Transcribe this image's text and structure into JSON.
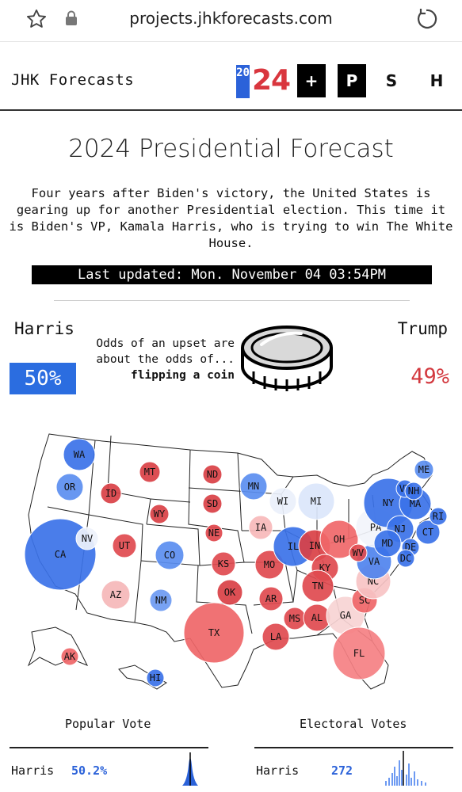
{
  "browser": {
    "url": "projects.jhkforecasts.com",
    "icons": [
      "star-icon",
      "lock-icon",
      "reload-icon"
    ]
  },
  "header": {
    "brand": "JHK Forecasts",
    "logo_top": "20",
    "logo_year": "24",
    "buttons": [
      "+",
      "P",
      "S",
      "H"
    ]
  },
  "page": {
    "title": "2024 Presidential Forecast",
    "intro": "Four years after Biden's victory, the United States is gearing up for another Presidential election. This time it is Biden's VP, Kamala Harris, who is trying to win The White House.",
    "updated": "Last updated: Mon. November 04 03:54PM"
  },
  "odds": {
    "left_name": "Harris",
    "left_pct": "50%",
    "right_name": "Trump",
    "right_pct": "49%",
    "upset_line1": "Odds of an upset are",
    "upset_line2": "about the odds of...",
    "upset_line3": "flipping a coin"
  },
  "colors": {
    "dem": "#2b6de0",
    "rep": "#e03a40",
    "accent_red": "#d9363e"
  },
  "states": [
    {
      "code": "WA",
      "r": 20,
      "c": "#3b72e8"
    },
    {
      "code": "OR",
      "r": 17,
      "c": "#5b8ef0"
    },
    {
      "code": "CA",
      "r": 45,
      "c": "#3b72e8"
    },
    {
      "code": "NV",
      "r": 14,
      "c": "#eef2fb"
    },
    {
      "code": "ID",
      "r": 13,
      "c": "#d94045"
    },
    {
      "code": "MT",
      "r": 13,
      "c": "#d94045"
    },
    {
      "code": "WY",
      "r": 12,
      "c": "#d94045"
    },
    {
      "code": "UT",
      "r": 15,
      "c": "#e04a4f"
    },
    {
      "code": "AZ",
      "r": 18,
      "c": "#f5b7b8"
    },
    {
      "code": "CO",
      "r": 18,
      "c": "#5b8ef0"
    },
    {
      "code": "NM",
      "r": 14,
      "c": "#6d9af2"
    },
    {
      "code": "ND",
      "r": 12,
      "c": "#d94045"
    },
    {
      "code": "SD",
      "r": 12,
      "c": "#d94045"
    },
    {
      "code": "NE",
      "r": 11,
      "c": "#e0474c"
    },
    {
      "code": "KS",
      "r": 15,
      "c": "#e04a4f"
    },
    {
      "code": "OK",
      "r": 16,
      "c": "#d94045"
    },
    {
      "code": "TX",
      "r": 38,
      "c": "#ef6668"
    },
    {
      "code": "MN",
      "r": 17,
      "c": "#5b8ef0"
    },
    {
      "code": "IA",
      "r": 15,
      "c": "#f7b9ba"
    },
    {
      "code": "MO",
      "r": 18,
      "c": "#e04a4f"
    },
    {
      "code": "AR",
      "r": 15,
      "c": "#e04a4f"
    },
    {
      "code": "LA",
      "r": 17,
      "c": "#e04a4f"
    },
    {
      "code": "WI",
      "r": 17,
      "c": "#eaf0fb"
    },
    {
      "code": "IL",
      "r": 25,
      "c": "#3b72e8"
    },
    {
      "code": "MI",
      "r": 23,
      "c": "#dbe6fb"
    },
    {
      "code": "IN",
      "r": 20,
      "c": "#d94045"
    },
    {
      "code": "OH",
      "r": 24,
      "c": "#f06769"
    },
    {
      "code": "KY",
      "r": 17,
      "c": "#e04a4f"
    },
    {
      "code": "TN",
      "r": 20,
      "c": "#e04a4f"
    },
    {
      "code": "MS",
      "r": 14,
      "c": "#e04a4f"
    },
    {
      "code": "AL",
      "r": 17,
      "c": "#e04a4f"
    },
    {
      "code": "GA",
      "r": 24,
      "c": "#f7d4d4"
    },
    {
      "code": "FL",
      "r": 33,
      "c": "#f58083"
    },
    {
      "code": "SC",
      "r": 16,
      "c": "#ef6668"
    },
    {
      "code": "NC",
      "r": 22,
      "c": "#f7c3c4"
    },
    {
      "code": "VA",
      "r": 22,
      "c": "#4f83ee"
    },
    {
      "code": "WV",
      "r": 11,
      "c": "#e04a4f"
    },
    {
      "code": "PA",
      "r": 25,
      "c": "#f2f4fb"
    },
    {
      "code": "NY",
      "r": 31,
      "c": "#3b72e8"
    },
    {
      "code": "NJ",
      "r": 17,
      "c": "#3b72e8"
    },
    {
      "code": "MD",
      "r": 17,
      "c": "#3b72e8"
    },
    {
      "code": "DE",
      "r": 11,
      "c": "#3b72e8"
    },
    {
      "code": "DC",
      "r": 11,
      "c": "#3b72e8"
    },
    {
      "code": "CT",
      "r": 15,
      "c": "#3b72e8"
    },
    {
      "code": "RI",
      "r": 11,
      "c": "#3b72e8"
    },
    {
      "code": "MA",
      "r": 20,
      "c": "#3b72e8"
    },
    {
      "code": "VT",
      "r": 11,
      "c": "#3b72e8"
    },
    {
      "code": "NH",
      "r": 11,
      "c": "#3b72e8"
    },
    {
      "code": "ME",
      "r": 12,
      "c": "#5b8ef0"
    },
    {
      "code": "AK",
      "r": 11,
      "c": "#ef6668"
    },
    {
      "code": "HI",
      "r": 11,
      "c": "#3b72e8"
    }
  ],
  "popular_vote": {
    "heading": "Popular Vote",
    "label": "Harris",
    "value": "50.2%"
  },
  "electoral_votes": {
    "heading": "Electoral Votes",
    "label": "Harris",
    "value": "272"
  }
}
